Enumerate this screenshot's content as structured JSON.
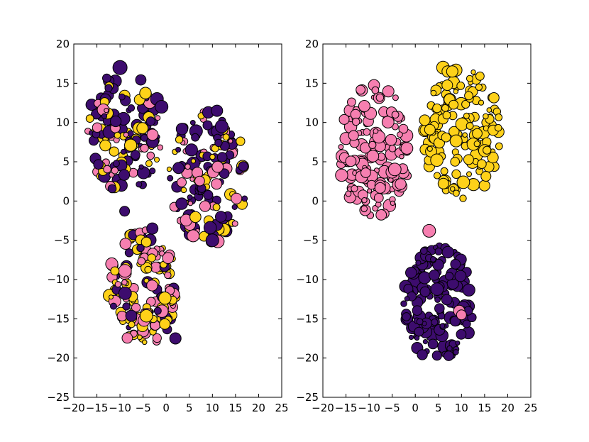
{
  "chart_data": [
    {
      "type": "scatter",
      "panel": "left",
      "xlim": [
        -20,
        25
      ],
      "ylim": [
        -25,
        20
      ],
      "xticks": [
        -20,
        -15,
        -10,
        -5,
        0,
        5,
        10,
        15,
        20,
        25
      ],
      "yticks": [
        -25,
        -20,
        -15,
        -10,
        -5,
        0,
        5,
        10,
        15,
        20
      ],
      "xtick_labels": [
        "−20",
        "−15",
        "−10",
        "−5",
        "0",
        "5",
        "10",
        "15",
        "20",
        "25"
      ],
      "ytick_labels": [
        "−25",
        "−20",
        "−15",
        "−10",
        "−5",
        "0",
        "5",
        "10",
        "15",
        "20"
      ],
      "grid": false,
      "clusters": [
        {
          "center": [
            -9,
            9
          ],
          "radius": [
            8,
            8
          ],
          "colors": [
            "#3d0c6e",
            "#fed119",
            "#f67fb0"
          ],
          "weights": [
            0.5,
            0.3,
            0.2
          ],
          "count": 140
        },
        {
          "center": [
            9,
            3
          ],
          "radius": [
            8.5,
            8.5
          ],
          "colors": [
            "#3d0c6e",
            "#f67fb0",
            "#fed119"
          ],
          "weights": [
            0.4,
            0.4,
            0.2
          ],
          "count": 150
        },
        {
          "center": [
            -5,
            -11
          ],
          "radius": [
            7.5,
            7.5
          ],
          "colors": [
            "#fed119",
            "#f67fb0",
            "#3d0c6e"
          ],
          "weights": [
            0.4,
            0.35,
            0.25
          ],
          "count": 150
        }
      ],
      "series": [
        {
          "x": [
            -10,
            -2,
            -1,
            11,
            12,
            -3,
            -9,
            2,
            10
          ],
          "y": [
            17,
            13,
            12,
            11.5,
            9.5,
            -3.5,
            -1.3,
            -17.5,
            -5
          ],
          "size": [
            10,
            9,
            9,
            8,
            9,
            8,
            7,
            8,
            9
          ],
          "color": "#3d0c6e"
        }
      ]
    },
    {
      "type": "scatter",
      "panel": "right",
      "xlim": [
        -20,
        25
      ],
      "ylim": [
        -25,
        20
      ],
      "xticks": [
        -20,
        -15,
        -10,
        -5,
        0,
        5,
        10,
        15,
        20,
        25
      ],
      "yticks": [
        -25,
        -20,
        -15,
        -10,
        -5,
        0,
        5,
        10,
        15,
        20
      ],
      "xtick_labels": [
        "−20",
        "−15",
        "−10",
        "−5",
        "0",
        "5",
        "10",
        "15",
        "20",
        "25"
      ],
      "ytick_labels": [
        "−25",
        "−20",
        "−15",
        "−10",
        "−5",
        "0",
        "5",
        "10",
        "15",
        "20"
      ],
      "grid": false,
      "clusters": [
        {
          "center": [
            -9,
            6.5
          ],
          "radius": [
            8,
            8.5
          ],
          "colors": [
            "#f67fb0"
          ],
          "weights": [
            1
          ],
          "count": 150
        },
        {
          "center": [
            10,
            8.5
          ],
          "radius": [
            8.5,
            8.5
          ],
          "colors": [
            "#fed119"
          ],
          "weights": [
            1
          ],
          "count": 150
        },
        {
          "center": [
            5,
            -13
          ],
          "radius": [
            7.5,
            7.5
          ],
          "colors": [
            "#3d0c6e"
          ],
          "weights": [
            1
          ],
          "count": 160
        }
      ],
      "series": [
        {
          "x": [
            3,
            9.5,
            10
          ],
          "y": [
            -3.8,
            -14,
            -14.5
          ],
          "size": [
            9,
            8,
            7
          ],
          "color": "#f67fb0"
        },
        {
          "x": [
            6,
            7,
            8
          ],
          "y": [
            17,
            16.5,
            16.5
          ],
          "size": [
            9,
            8,
            8
          ],
          "color": "#fed119"
        }
      ]
    }
  ],
  "colors": {
    "purple": "#3d0c6e",
    "pink": "#f67fb0",
    "yellow": "#fed119",
    "axis": "#000000",
    "background": "#ffffff"
  }
}
